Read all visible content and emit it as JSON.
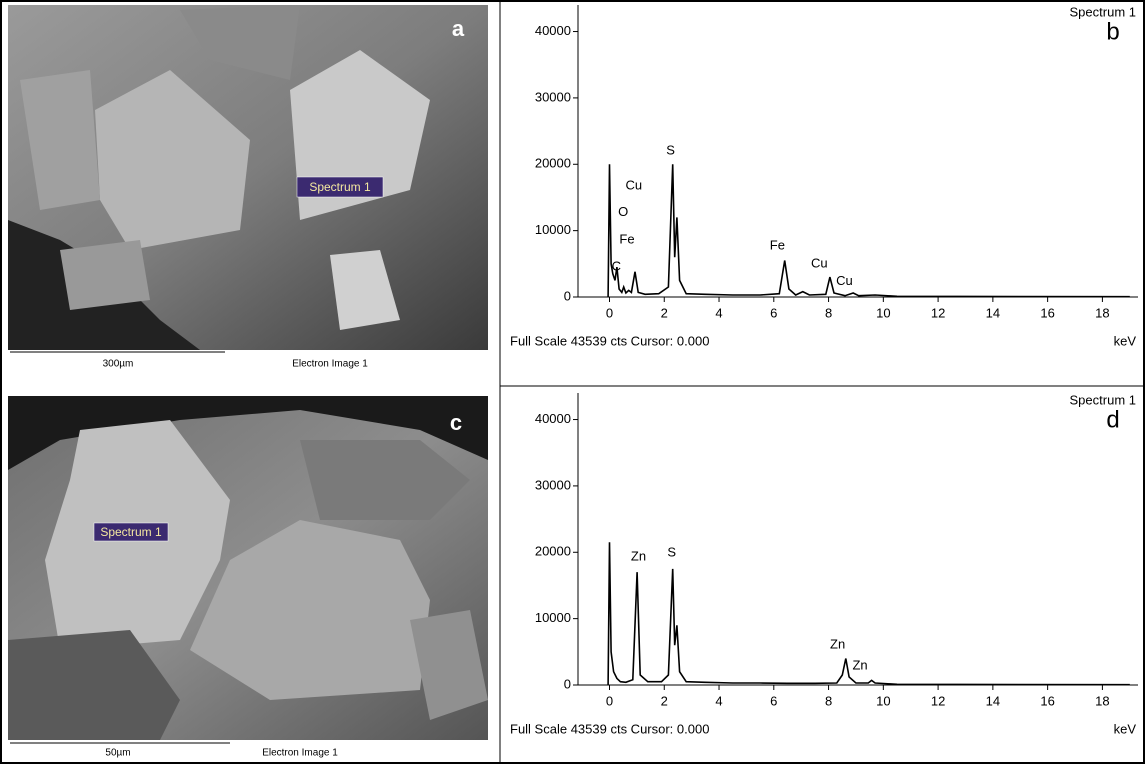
{
  "panels": [
    {
      "letter": "a",
      "marker": "Spectrum 1",
      "scale_label": "300µm",
      "caption": "Electron Image 1"
    },
    {
      "letter": "c",
      "marker": "Spectrum 1",
      "scale_label": "50µm",
      "caption": "Electron Image 1"
    }
  ],
  "chart_data": [
    {
      "type": "line",
      "title": "Spectrum 1",
      "panel": "b",
      "x_axis_label": "keV",
      "footer": "Full Scale 43539 cts Cursor: 0.000",
      "color": "#000000",
      "x": [
        -0.05,
        0,
        0.06,
        0.12,
        0.2,
        0.27,
        0.35,
        0.45,
        0.52,
        0.6,
        0.7,
        0.8,
        0.93,
        1.05,
        1.3,
        1.8,
        2.15,
        2.31,
        2.38,
        2.46,
        2.56,
        2.8,
        3.5,
        4.5,
        5.5,
        6.2,
        6.4,
        6.55,
        6.8,
        7.06,
        7.3,
        7.9,
        8.05,
        8.2,
        8.6,
        8.9,
        9.1,
        9.7,
        10.5,
        19
      ],
      "values": [
        0,
        20000,
        5000,
        3500,
        2500,
        4500,
        1200,
        700,
        1500,
        600,
        1000,
        700,
        3800,
        700,
        400,
        500,
        1500,
        20000,
        6000,
        12000,
        2500,
        500,
        400,
        300,
        300,
        500,
        5500,
        1200,
        300,
        800,
        300,
        400,
        3000,
        600,
        200,
        600,
        200,
        300,
        100,
        50
      ],
      "xlim": [
        -1.15,
        19.3
      ],
      "ylim": [
        0,
        44000
      ],
      "xticks": [
        0,
        2,
        4,
        6,
        8,
        10,
        12,
        14,
        16,
        18
      ],
      "yticks": [
        0,
        10000,
        20000,
        30000,
        40000
      ],
      "annotations": [
        {
          "text": "S",
          "x": 2.23,
          "y": 22000
        },
        {
          "text": "Cu",
          "x": 0.89,
          "y": 16750
        },
        {
          "text": "O",
          "x": 0.5,
          "y": 12700
        },
        {
          "text": "Fe",
          "x": 0.64,
          "y": 8600
        },
        {
          "text": "C",
          "x": 0.25,
          "y": 4500
        },
        {
          "text": "Fe",
          "x": 6.13,
          "y": 7700
        },
        {
          "text": "Cu",
          "x": 7.66,
          "y": 5000
        },
        {
          "text": "Cu",
          "x": 8.58,
          "y": 2300
        }
      ]
    },
    {
      "type": "line",
      "title": "Spectrum 1",
      "panel": "d",
      "x_axis_label": "keV",
      "footer": "Full Scale 43539 cts Cursor: 0.000",
      "color": "#000000",
      "x": [
        -0.05,
        0,
        0.06,
        0.15,
        0.27,
        0.4,
        0.6,
        0.85,
        1.01,
        1.12,
        1.4,
        1.9,
        2.15,
        2.31,
        2.38,
        2.46,
        2.56,
        2.8,
        3.5,
        4.5,
        5.5,
        6.5,
        7.5,
        8.3,
        8.5,
        8.63,
        8.75,
        9.0,
        9.45,
        9.57,
        9.7,
        10.5,
        19
      ],
      "values": [
        0,
        21500,
        5000,
        2000,
        1000,
        500,
        400,
        800,
        17000,
        1500,
        500,
        500,
        1500,
        17500,
        6000,
        9000,
        2000,
        500,
        400,
        300,
        300,
        250,
        250,
        300,
        1500,
        4000,
        1200,
        300,
        300,
        700,
        300,
        100,
        50
      ],
      "xlim": [
        -1.15,
        19.3
      ],
      "ylim": [
        0,
        44000
      ],
      "xticks": [
        0,
        2,
        4,
        6,
        8,
        10,
        12,
        14,
        16,
        18
      ],
      "yticks": [
        0,
        10000,
        20000,
        30000,
        40000
      ],
      "annotations": [
        {
          "text": "Zn",
          "x": 1.06,
          "y": 19300
        },
        {
          "text": "S",
          "x": 2.27,
          "y": 19900
        },
        {
          "text": "Zn",
          "x": 8.33,
          "y": 6000
        },
        {
          "text": "Zn",
          "x": 9.15,
          "y": 2850
        }
      ]
    }
  ]
}
